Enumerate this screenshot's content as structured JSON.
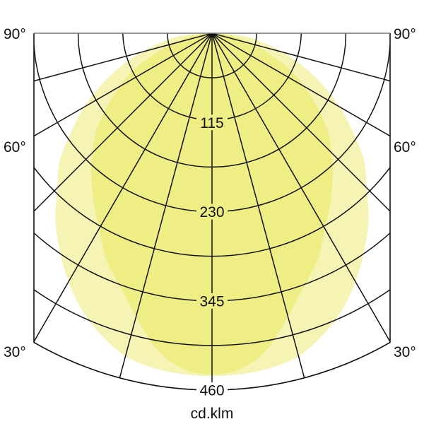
{
  "chart_data": {
    "type": "polar",
    "title": "",
    "unit_label": "cd.klm",
    "angle_labels": {
      "left": [
        "90°",
        "60°",
        "30°"
      ],
      "right": [
        "90°",
        "60°",
        "30°"
      ]
    },
    "radial_tick_labels": [
      "115",
      "230",
      "345",
      "460"
    ],
    "radial_range": [
      0,
      460
    ],
    "angle_range_deg": [
      -90,
      90
    ],
    "grid": true,
    "grid_circle_step": 57.5,
    "grid_angle_step_deg": 15,
    "symmetric": true,
    "series": [
      {
        "color": "#f6f4b4",
        "angles_deg": [
          0,
          5,
          10,
          15,
          20,
          25,
          30,
          35,
          40,
          45,
          50,
          55,
          60,
          65,
          70,
          75,
          80,
          85,
          90
        ],
        "values": [
          442,
          441,
          438,
          431,
          415,
          395,
          370,
          342,
          314,
          282,
          256,
          222,
          190,
          157,
          125,
          94,
          65,
          40,
          0
        ]
      },
      {
        "color": "#efee84",
        "angles_deg": [
          0,
          5,
          10,
          15,
          20,
          25,
          30,
          35,
          40,
          45,
          50,
          55,
          60,
          65,
          70,
          75,
          80,
          85,
          90
        ],
        "values": [
          440,
          434,
          413,
          378,
          347,
          322,
          291,
          266,
          242,
          218,
          194,
          165,
          137,
          111,
          78,
          55,
          35,
          17,
          0
        ]
      }
    ]
  }
}
